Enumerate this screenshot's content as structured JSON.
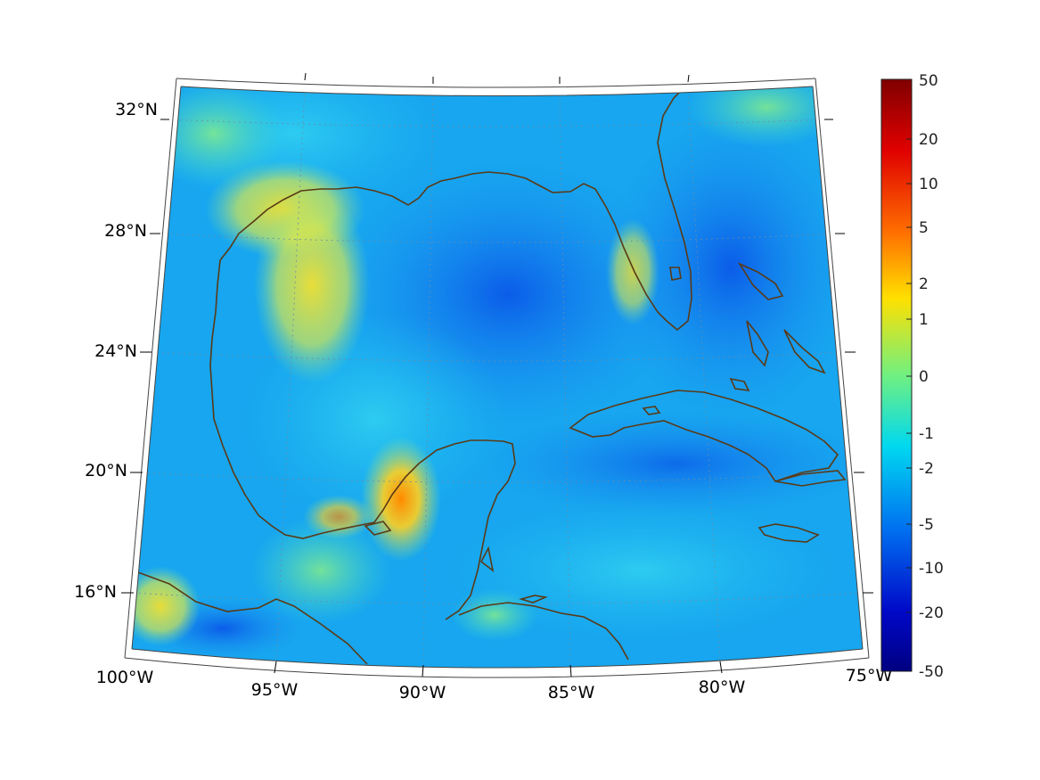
{
  "map": {
    "lat_labels": [
      "32°N",
      "28°N",
      "24°N",
      "20°N",
      "16°N"
    ],
    "lon_labels": [
      "100°W",
      "95°W",
      "90°W",
      "85°W",
      "80°W",
      "75°W"
    ],
    "coastline_color": "#5a3a16",
    "grid_color": "#6a8ca8"
  },
  "colorbar": {
    "ticks": [
      "50",
      "20",
      "10",
      "5",
      "2",
      "1",
      "0",
      "-1",
      "-2",
      "-5",
      "-10",
      "-20",
      "-50"
    ]
  }
}
